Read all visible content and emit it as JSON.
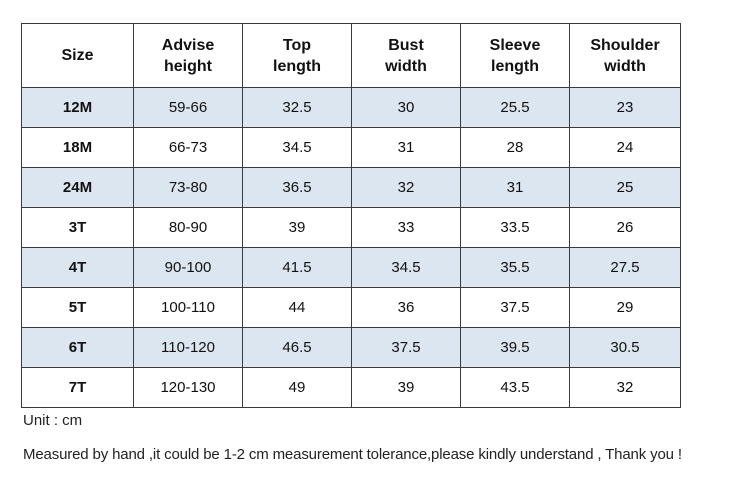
{
  "table": {
    "headers": [
      [
        "Size"
      ],
      [
        "Advise",
        "height"
      ],
      [
        "Top",
        "length"
      ],
      [
        "Bust",
        "width"
      ],
      [
        "Sleeve",
        "length"
      ],
      [
        "Shoulder",
        "width"
      ]
    ],
    "rows": [
      [
        "12M",
        "59-66",
        "32.5",
        "30",
        "25.5",
        "23"
      ],
      [
        "18M",
        "66-73",
        "34.5",
        "31",
        "28",
        "24"
      ],
      [
        "24M",
        "73-80",
        "36.5",
        "32",
        "31",
        "25"
      ],
      [
        "3T",
        "80-90",
        "39",
        "33",
        "33.5",
        "26"
      ],
      [
        "4T",
        "90-100",
        "41.5",
        "34.5",
        "35.5",
        "27.5"
      ],
      [
        "5T",
        "100-110",
        "44",
        "36",
        "37.5",
        "29"
      ],
      [
        "6T",
        "110-120",
        "46.5",
        "37.5",
        "39.5",
        "30.5"
      ],
      [
        "7T",
        "120-130",
        "49",
        "39",
        "43.5",
        "32"
      ]
    ],
    "shaded_row_color": "#dce6f1"
  },
  "notes": {
    "unit": "Unit : cm",
    "tolerance": "Measured by hand ,it could be 1-2 cm measurement tolerance,please kindly understand , Thank you !"
  }
}
